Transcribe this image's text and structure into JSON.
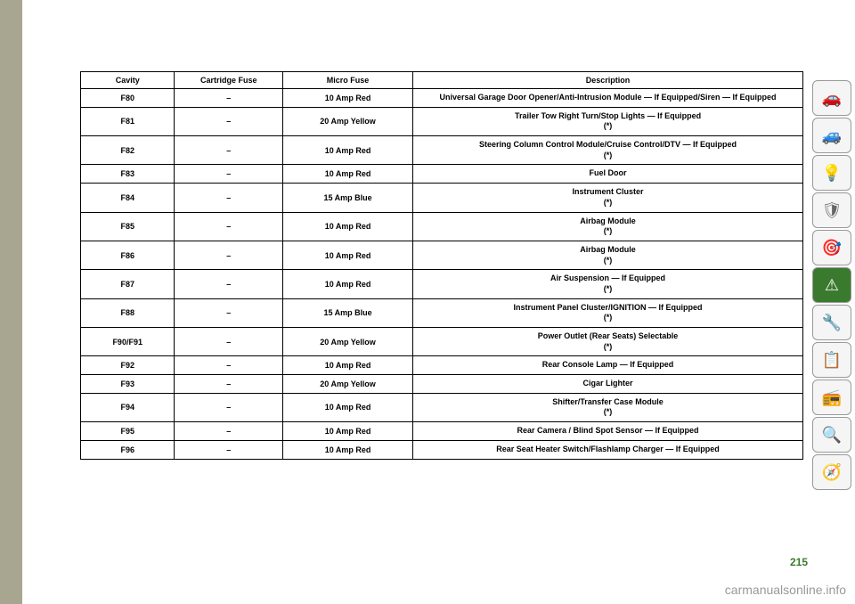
{
  "table": {
    "headers": {
      "cavity": "Cavity",
      "cartridge": "Cartridge Fuse",
      "micro": "Micro Fuse",
      "description": "Description"
    },
    "rows": [
      {
        "cavity": "F80",
        "cartridge": "–",
        "micro": "10 Amp Red",
        "desc": "Universal Garage Door Opener/Anti-Intrusion Module — If Equipped/Siren — If Equipped"
      },
      {
        "cavity": "F81",
        "cartridge": "–",
        "micro": "20 Amp Yellow",
        "desc": "Trailer Tow Right Turn/Stop Lights — If Equipped",
        "note": "(*)"
      },
      {
        "cavity": "F82",
        "cartridge": "–",
        "micro": "10 Amp Red",
        "desc": "Steering Column Control Module/Cruise Control/DTV — If Equipped",
        "note": "(*)"
      },
      {
        "cavity": "F83",
        "cartridge": "–",
        "micro": "10 Amp Red",
        "desc": "Fuel Door"
      },
      {
        "cavity": "F84",
        "cartridge": "–",
        "micro": "15 Amp Blue",
        "desc": "Instrument Cluster",
        "note": "(*)"
      },
      {
        "cavity": "F85",
        "cartridge": "–",
        "micro": "10 Amp Red",
        "desc": "Airbag Module",
        "note": "(*)"
      },
      {
        "cavity": "F86",
        "cartridge": "–",
        "micro": "10 Amp Red",
        "desc": "Airbag Module",
        "note": "(*)"
      },
      {
        "cavity": "F87",
        "cartridge": "–",
        "micro": "10 Amp Red",
        "desc": "Air Suspension — If Equipped",
        "note": "(*)"
      },
      {
        "cavity": "F88",
        "cartridge": "–",
        "micro": "15 Amp Blue",
        "desc": "Instrument Panel Cluster/IGNITION — If Equipped",
        "note": "(*)"
      },
      {
        "cavity": "F90/F91",
        "cartridge": "–",
        "micro": "20 Amp Yellow",
        "desc": "Power Outlet (Rear Seats) Selectable",
        "note": "(*)"
      },
      {
        "cavity": "F92",
        "cartridge": "–",
        "micro": "10 Amp Red",
        "desc": "Rear Console Lamp — If Equipped"
      },
      {
        "cavity": "F93",
        "cartridge": "–",
        "micro": "20 Amp Yellow",
        "desc": "Cigar Lighter"
      },
      {
        "cavity": "F94",
        "cartridge": "–",
        "micro": "10 Amp Red",
        "desc": "Shifter/Transfer Case Module",
        "note": "(*)"
      },
      {
        "cavity": "F95",
        "cartridge": "–",
        "micro": "10 Amp Red",
        "desc": "Rear Camera / Blind Spot Sensor — If Equipped"
      },
      {
        "cavity": "F96",
        "cartridge": "–",
        "micro": "10 Amp Red",
        "desc": "Rear Seat Heater Switch/Flashlamp Charger — If Equipped"
      }
    ]
  },
  "sidebar": {
    "icons": [
      {
        "name": "car-search",
        "glyph": "🚗",
        "active": false
      },
      {
        "name": "car-info",
        "glyph": "🚙",
        "active": false
      },
      {
        "name": "light",
        "glyph": "💡",
        "active": false
      },
      {
        "name": "airbag",
        "glyph": "🛡",
        "active": false
      },
      {
        "name": "steering",
        "glyph": "🎯",
        "active": false
      },
      {
        "name": "warning",
        "glyph": "⚠",
        "active": true
      },
      {
        "name": "wrench",
        "glyph": "🔧",
        "active": false
      },
      {
        "name": "document",
        "glyph": "📋",
        "active": false
      },
      {
        "name": "media",
        "glyph": "📻",
        "active": false
      },
      {
        "name": "search",
        "glyph": "🔍",
        "active": false
      },
      {
        "name": "compass",
        "glyph": "🧭",
        "active": false
      }
    ]
  },
  "page_number": "215",
  "watermark": "carmanualsonline.info",
  "colors": {
    "left_bar": "#a8a590",
    "active_icon_bg": "#3a7a2e",
    "page_num": "#3a7a2e",
    "watermark": "#999999"
  }
}
